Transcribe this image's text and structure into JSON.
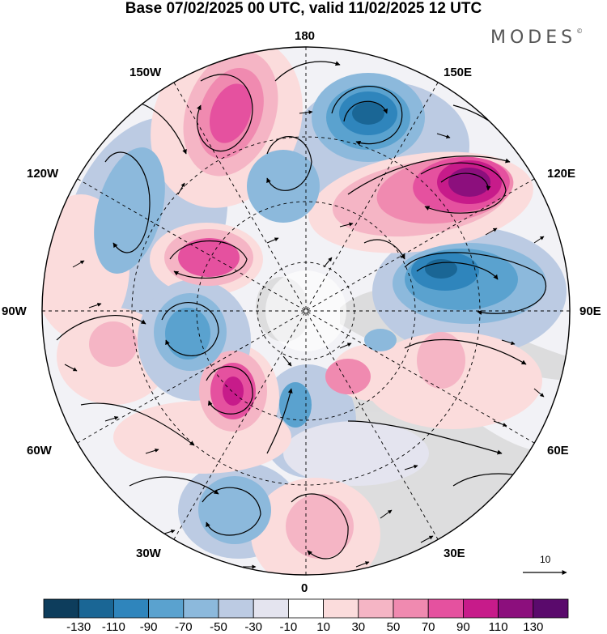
{
  "title": "Base 07/02/2025 00 UTC, valid 11/02/2025 12 UTC",
  "brand": "MODES",
  "brand_mark": "©",
  "longitude_labels": {
    "top": "180",
    "top_right": "150E",
    "top_left": "150W",
    "upper_left": "120W",
    "upper_right": "120E",
    "left": "90W",
    "right": "90E",
    "lower_left": "60W",
    "lower_right": "60E",
    "bottom_left": "30W",
    "bottom_right": "30E",
    "bottom": "0"
  },
  "reference_vector": {
    "value": "10"
  },
  "colorbar": {
    "ticks": [
      "-130",
      "-110",
      "-90",
      "-70",
      "-50",
      "-30",
      "-10",
      "10",
      "30",
      "50",
      "70",
      "90",
      "110",
      "130"
    ],
    "colors": [
      "#0d3d5c",
      "#1a6695",
      "#2f85bc",
      "#5aa2cf",
      "#8cb9dc",
      "#bccbe3",
      "#e4e4ef",
      "#ffffff",
      "#fbdcdc",
      "#f5b5c5",
      "#f08ab0",
      "#e5519f",
      "#c71b8a",
      "#8c0f7d",
      "#5a0a6c"
    ]
  },
  "colors": {
    "land": "#d9d9d9",
    "strong_positive": "#c71b8a",
    "strong_negative": "#1a6695"
  }
}
